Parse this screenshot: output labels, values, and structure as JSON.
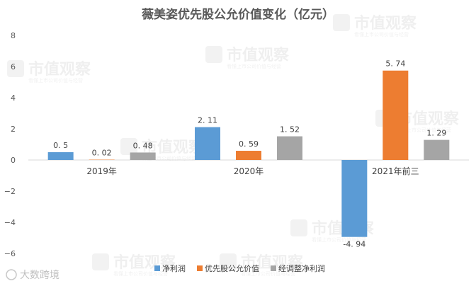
{
  "chart_data": {
    "type": "bar",
    "title": "薇美姿优先股公允价值变化（亿元）",
    "categories": [
      "2019年",
      "2020年",
      "2021年前三"
    ],
    "series": [
      {
        "name": "净利润",
        "color": "#5b9bd5",
        "values": [
          0.5,
          2.11,
          -4.94
        ],
        "labels": [
          "0. 5",
          "2. 11",
          "-4. 94"
        ]
      },
      {
        "name": "优先股公允价值",
        "color": "#ed7d31",
        "values": [
          0.02,
          0.59,
          5.74
        ],
        "labels": [
          "0. 02",
          "0. 59",
          "5. 74"
        ]
      },
      {
        "name": "经调整净利润",
        "color": "#a5a5a5",
        "values": [
          0.48,
          1.52,
          1.29
        ],
        "labels": [
          "0. 48",
          "1. 52",
          "1. 29"
        ]
      }
    ],
    "ylim": [
      -6,
      8
    ],
    "yticks": [
      -6,
      -4,
      -2,
      0,
      2,
      4,
      6,
      8
    ],
    "ytick_labels": [
      "−6",
      "−4",
      "−2",
      "0",
      "2",
      "4",
      "6",
      "8"
    ],
    "grid": false,
    "legend_position": "bottom"
  },
  "watermark": {
    "text": "市值观察",
    "subtext": "看懂上市公司价值与经营"
  },
  "corner_mark": {
    "text": "大数跨境"
  }
}
